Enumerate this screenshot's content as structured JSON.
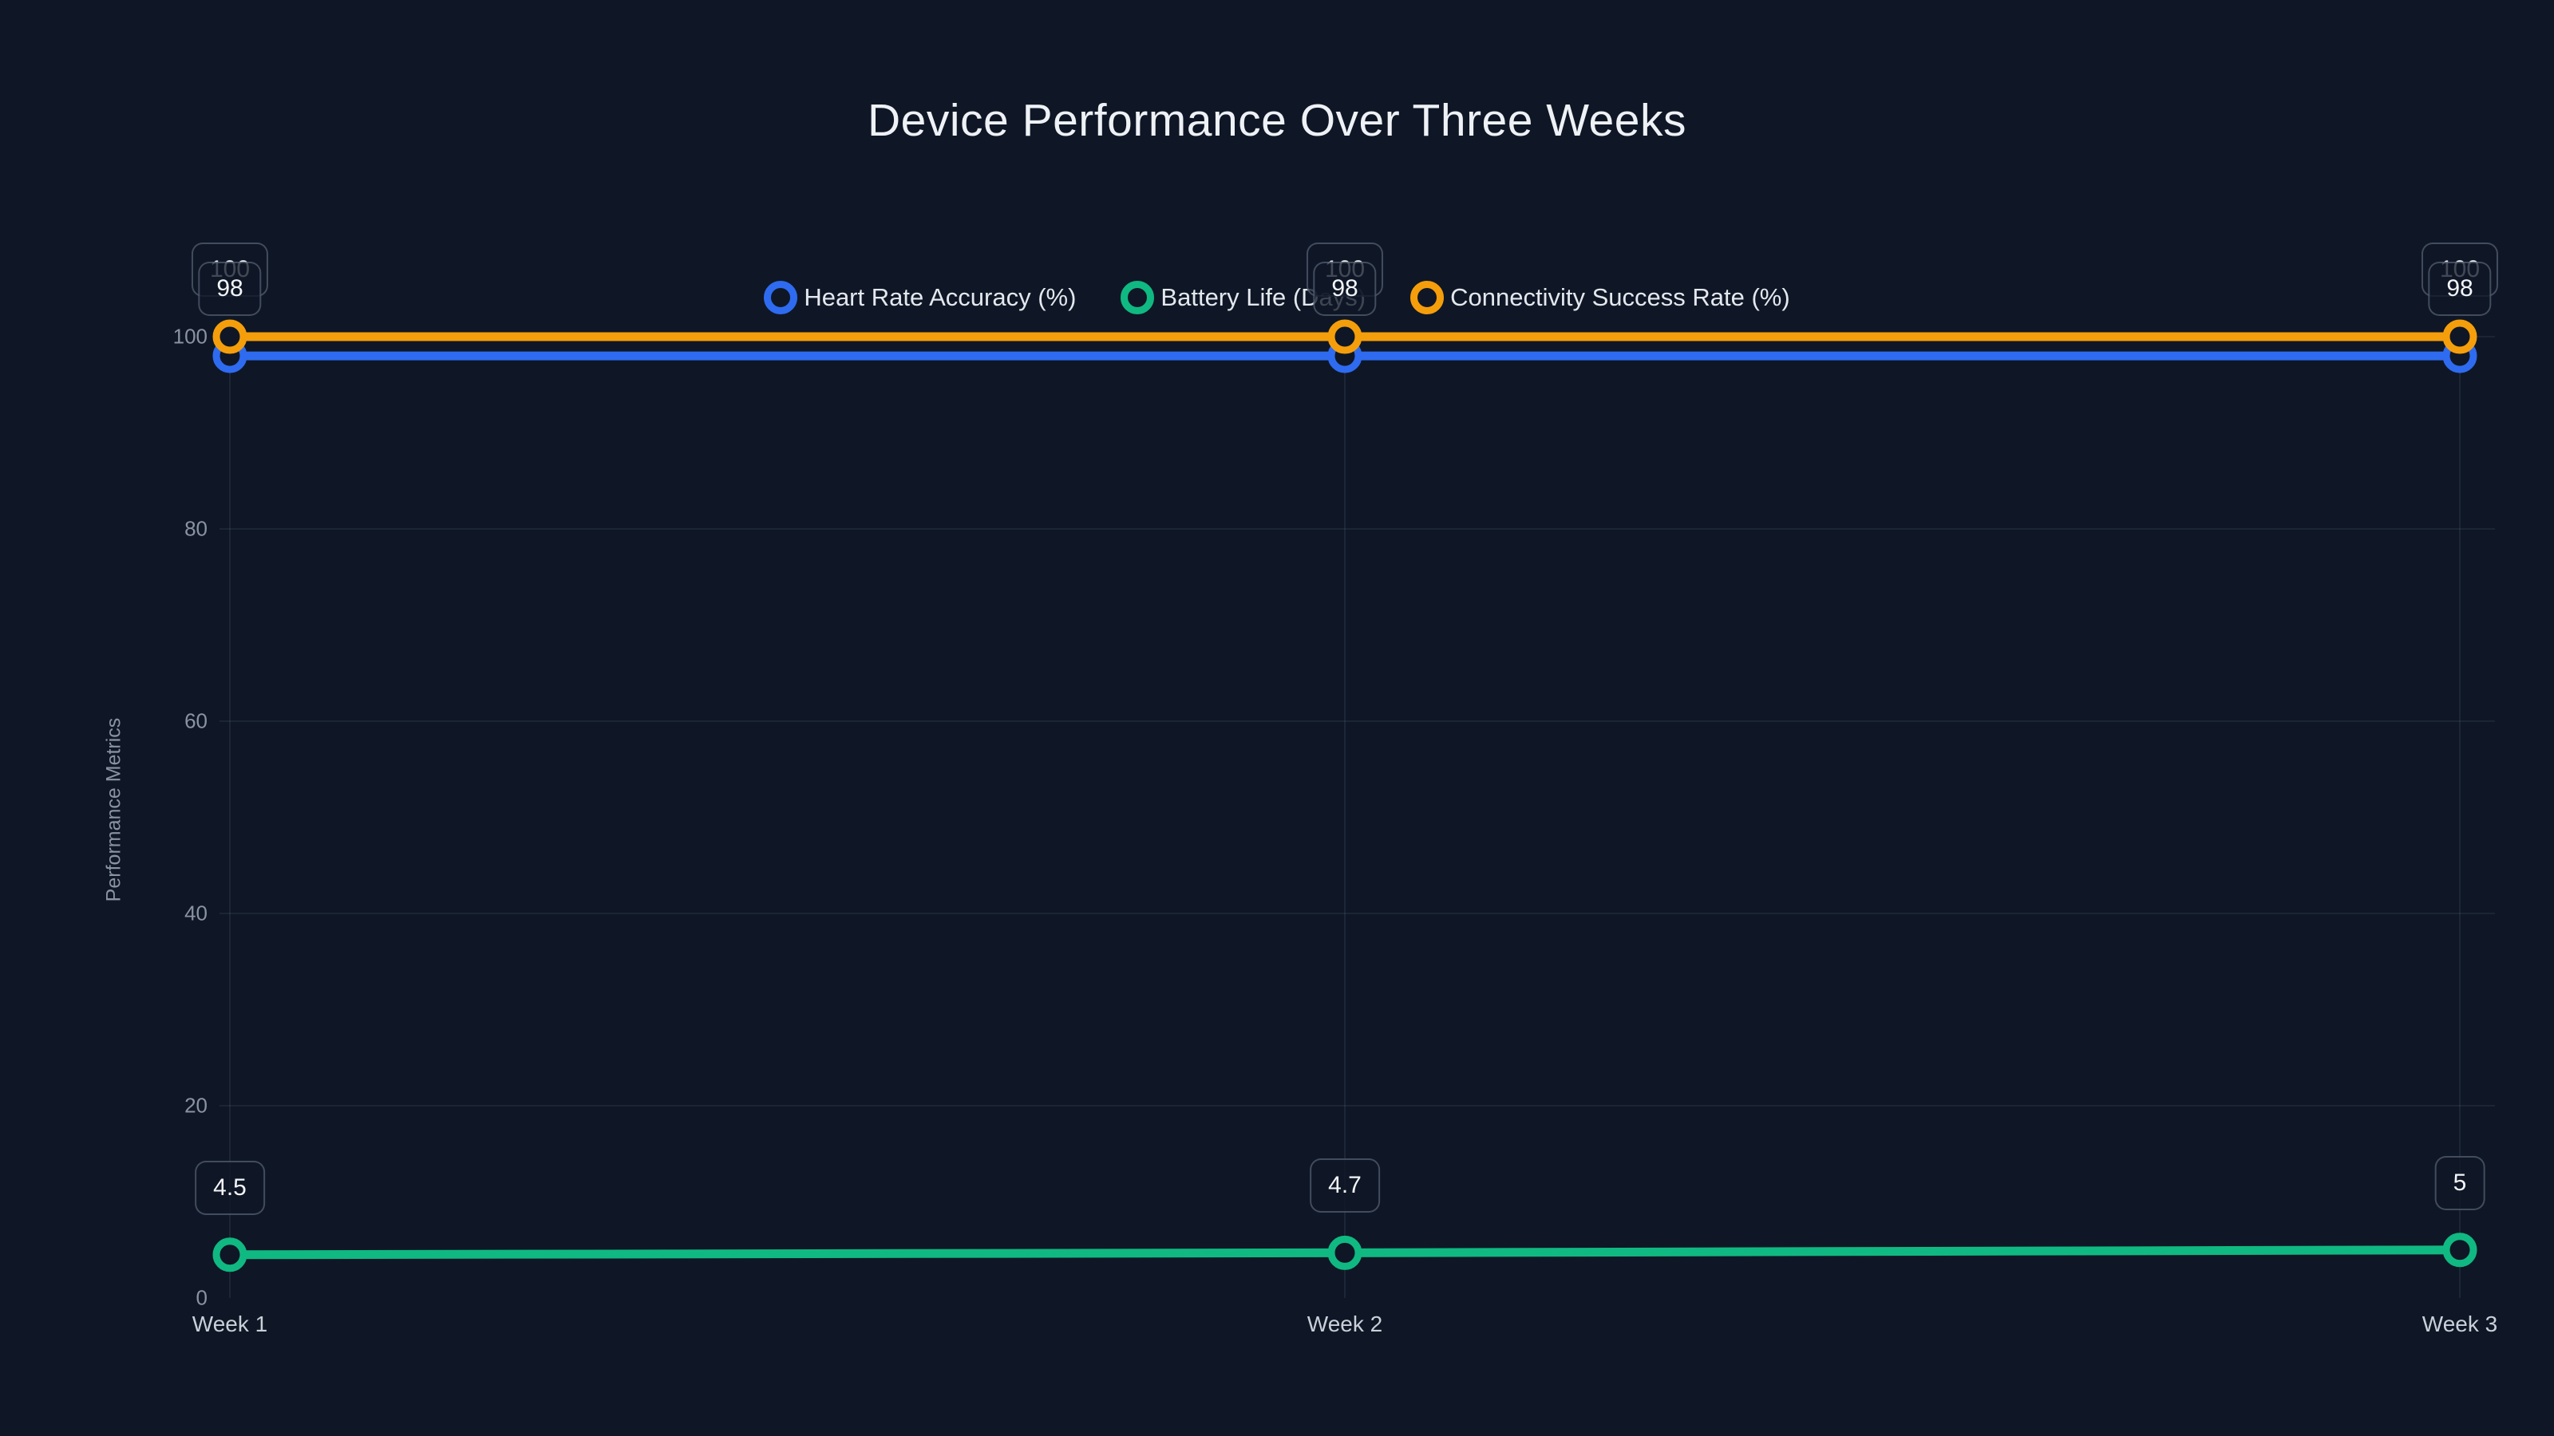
{
  "colors": {
    "background": "#0f1726",
    "grid": "rgba(148,163,184,0.14)",
    "title_text": "#eef1f5",
    "legend_text": "#e4e8ee",
    "tick_text": "#8a93a3",
    "x_label_text": "#c9d0d9",
    "label_box_border": "rgba(148,163,184,0.38)"
  },
  "chart_data": {
    "type": "line",
    "title": "Device Performance Over Three Weeks",
    "xlabel": "",
    "ylabel": "Performance Metrics",
    "categories": [
      "Week 1",
      "Week 2",
      "Week 3"
    ],
    "series": [
      {
        "name": "Heart Rate Accuracy (%)",
        "color": "#2e6bf0",
        "values": [
          98,
          98,
          98
        ],
        "labels": [
          "98",
          "98",
          "98"
        ]
      },
      {
        "name": "Battery Life (Days)",
        "color": "#10b981",
        "values": [
          4.5,
          4.7,
          5
        ],
        "labels": [
          "4.5",
          "4.7",
          "5"
        ]
      },
      {
        "name": "Connectivity Success Rate (%)",
        "color": "#f59e0b",
        "values": [
          100,
          100,
          100
        ],
        "labels": [
          "100",
          "100",
          "100"
        ]
      }
    ],
    "y_ticks": [
      0,
      20,
      40,
      60,
      80,
      100
    ],
    "ylim": [
      0,
      100
    ],
    "legend_position": "top",
    "grid": true,
    "marker_style": "open-circle"
  }
}
